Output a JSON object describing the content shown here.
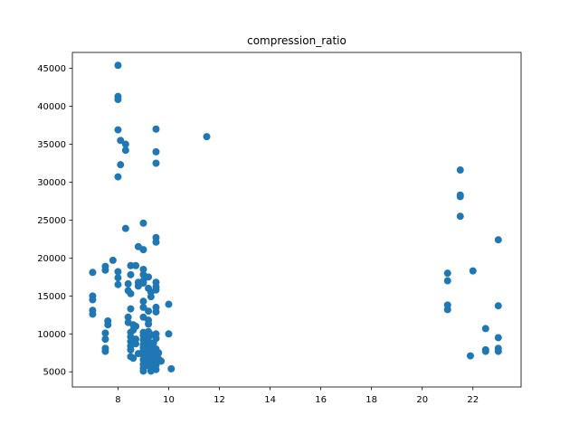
{
  "chart_data": {
    "type": "scatter",
    "title": "compression_ratio",
    "xlabel": "",
    "ylabel": "",
    "xlim": [
      6.2,
      23.9
    ],
    "ylim": [
      3000,
      47100
    ],
    "grid": false,
    "x_ticks": [
      8,
      10,
      12,
      14,
      16,
      18,
      20,
      22
    ],
    "y_ticks": [
      5000,
      10000,
      15000,
      20000,
      25000,
      30000,
      35000,
      40000,
      45000
    ],
    "series": [
      {
        "color": "#1f77b4",
        "points": [
          [
            8.0,
            45400
          ],
          [
            8.0,
            41300
          ],
          [
            8.0,
            40900
          ],
          [
            8.0,
            36900
          ],
          [
            8.1,
            35500
          ],
          [
            8.3,
            35000
          ],
          [
            8.3,
            34200
          ],
          [
            8.1,
            32300
          ],
          [
            8.0,
            30700
          ],
          [
            9.5,
            37000
          ],
          [
            9.5,
            34000
          ],
          [
            9.5,
            32500
          ],
          [
            11.5,
            36000
          ],
          [
            8.3,
            23900
          ],
          [
            9.0,
            24600
          ],
          [
            9.5,
            22700
          ],
          [
            9.5,
            22100
          ],
          [
            9.0,
            21100
          ],
          [
            8.8,
            21500
          ],
          [
            7.0,
            18100
          ],
          [
            7.5,
            18900
          ],
          [
            7.5,
            18400
          ],
          [
            7.8,
            19700
          ],
          [
            8.0,
            18200
          ],
          [
            8.0,
            17400
          ],
          [
            8.0,
            16500
          ],
          [
            8.5,
            19000
          ],
          [
            8.7,
            19000
          ],
          [
            8.5,
            17800
          ],
          [
            8.4,
            16600
          ],
          [
            8.4,
            15700
          ],
          [
            8.5,
            15300
          ],
          [
            8.8,
            16800
          ],
          [
            8.8,
            16300
          ],
          [
            9.0,
            18500
          ],
          [
            9.0,
            17800
          ],
          [
            9.0,
            17000
          ],
          [
            9.0,
            16700
          ],
          [
            9.2,
            17500
          ],
          [
            9.2,
            16000
          ],
          [
            9.3,
            15500
          ],
          [
            9.3,
            14900
          ],
          [
            9.5,
            16800
          ],
          [
            9.5,
            16200
          ],
          [
            9.5,
            15800
          ],
          [
            9.0,
            14300
          ],
          [
            7.0,
            15000
          ],
          [
            7.0,
            14500
          ],
          [
            7.0,
            13100
          ],
          [
            7.0,
            12600
          ],
          [
            8.5,
            13300
          ],
          [
            9.0,
            13500
          ],
          [
            9.2,
            13000
          ],
          [
            9.5,
            13500
          ],
          [
            9.5,
            12900
          ],
          [
            10.0,
            13900
          ],
          [
            7.6,
            11700
          ],
          [
            7.6,
            11200
          ],
          [
            8.4,
            12200
          ],
          [
            8.4,
            11500
          ],
          [
            8.6,
            11200
          ],
          [
            8.7,
            11000
          ],
          [
            9.0,
            12200
          ],
          [
            9.2,
            11800
          ],
          [
            9.2,
            11300
          ],
          [
            7.5,
            10100
          ],
          [
            7.5,
            9300
          ],
          [
            7.5,
            8100
          ],
          [
            7.5,
            7700
          ],
          [
            8.5,
            10200
          ],
          [
            8.5,
            9600
          ],
          [
            8.5,
            9000
          ],
          [
            8.5,
            8400
          ],
          [
            8.5,
            7900
          ],
          [
            8.6,
            10500
          ],
          [
            8.7,
            9300
          ],
          [
            8.7,
            8700
          ],
          [
            8.8,
            7400
          ],
          [
            8.5,
            7000
          ],
          [
            8.6,
            6800
          ],
          [
            9.0,
            10200
          ],
          [
            9.0,
            9800
          ],
          [
            9.0,
            9200
          ],
          [
            9.0,
            8600
          ],
          [
            9.0,
            8200
          ],
          [
            9.0,
            7800
          ],
          [
            9.0,
            7200
          ],
          [
            9.0,
            6600
          ],
          [
            9.0,
            6000
          ],
          [
            9.0,
            5500
          ],
          [
            9.0,
            5100
          ],
          [
            9.1,
            7000
          ],
          [
            9.2,
            10300
          ],
          [
            9.2,
            9500
          ],
          [
            9.2,
            9000
          ],
          [
            9.2,
            8500
          ],
          [
            9.2,
            8000
          ],
          [
            9.2,
            7500
          ],
          [
            9.2,
            6400
          ],
          [
            9.2,
            5800
          ],
          [
            9.3,
            9900
          ],
          [
            9.3,
            8300
          ],
          [
            9.3,
            7100
          ],
          [
            9.3,
            6200
          ],
          [
            9.4,
            8800
          ],
          [
            9.4,
            7700
          ],
          [
            9.4,
            6700
          ],
          [
            9.4,
            5500
          ],
          [
            9.5,
            10000
          ],
          [
            9.5,
            9400
          ],
          [
            9.5,
            8000
          ],
          [
            9.5,
            7400
          ],
          [
            9.5,
            6900
          ],
          [
            9.5,
            6300
          ],
          [
            9.5,
            5900
          ],
          [
            9.5,
            5300
          ],
          [
            9.6,
            7500
          ],
          [
            9.6,
            6700
          ],
          [
            9.7,
            6400
          ],
          [
            10.0,
            10000
          ],
          [
            10.1,
            5400
          ],
          [
            9.3,
            5100
          ],
          [
            21.0,
            18000
          ],
          [
            21.0,
            17000
          ],
          [
            21.0,
            13800
          ],
          [
            21.0,
            13200
          ],
          [
            21.5,
            31600
          ],
          [
            21.5,
            28300
          ],
          [
            21.5,
            28100
          ],
          [
            21.5,
            25500
          ],
          [
            22.0,
            18300
          ],
          [
            21.9,
            7100
          ],
          [
            22.5,
            10700
          ],
          [
            22.5,
            7900
          ],
          [
            22.5,
            7700
          ],
          [
            23.0,
            22400
          ],
          [
            23.0,
            13700
          ],
          [
            23.0,
            9500
          ],
          [
            23.0,
            8100
          ],
          [
            23.0,
            7700
          ]
        ]
      }
    ]
  }
}
